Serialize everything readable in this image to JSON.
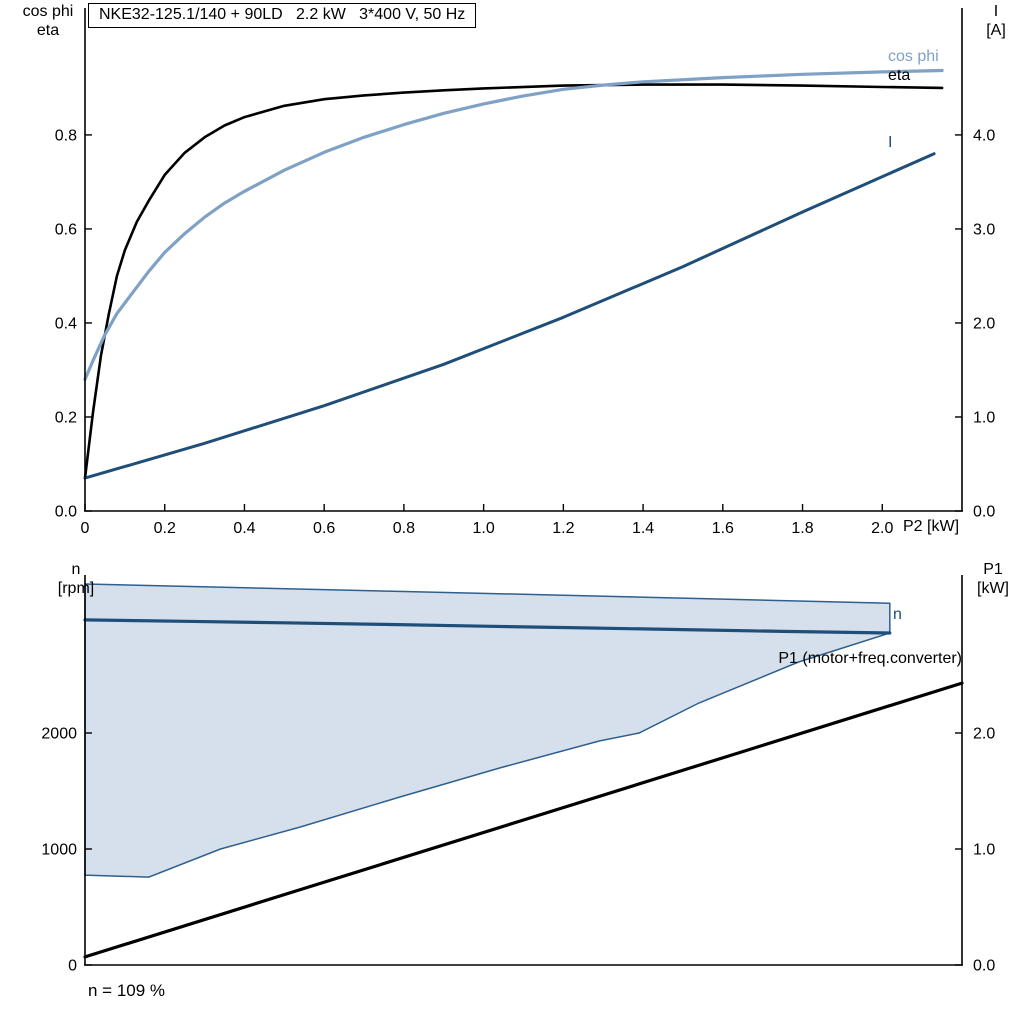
{
  "labels": {
    "top_left_line1": "cos phi",
    "top_left_line2": "eta",
    "top_right_line1": "I",
    "top_right_line2": "[A]",
    "x_axis_label": "P2 [kW]",
    "curve_cos_phi": "cos phi",
    "curve_eta": "eta",
    "curve_current": "I",
    "bottom_left_line1": "n",
    "bottom_left_line2": "[rpm]",
    "bottom_right_line1": "P1",
    "bottom_right_line2": "[kW]",
    "curve_n": "n",
    "curve_p1": "P1 (motor+freq.converter)"
  },
  "colors": {
    "eta": "#000000",
    "cos_phi": "#7fa1c6",
    "current": "#1f4e79",
    "speed": "#1f4e79",
    "p1": "#000000",
    "band_fill": "#d6e0ec",
    "band_stroke": "#2e5f8f"
  },
  "chart_data": [
    {
      "id": "motor-curves",
      "type": "line",
      "title": "NKE32-125.1/140 + 90LD   2.2 kW   3*400 V, 50 Hz",
      "x_axis": {
        "label": "P2 [kW]",
        "range": [
          0,
          2.2
        ],
        "tick_values": [
          0,
          0.2,
          0.4,
          0.6,
          0.8,
          1.0,
          1.2,
          1.4,
          1.6,
          1.8,
          2.0
        ],
        "tick_labels": [
          "0",
          "0.2",
          "0.4",
          "0.6",
          "0.8",
          "1.0",
          "1.2",
          "1.4",
          "1.6",
          "1.8",
          "2.0"
        ]
      },
      "y_left": {
        "label": "cos phi / eta",
        "range": [
          0,
          1.07
        ],
        "tick_values": [
          0,
          0.2,
          0.4,
          0.6,
          0.8
        ],
        "tick_labels": [
          "0.0",
          "0.2",
          "0.4",
          "0.6",
          "0.8"
        ]
      },
      "y_right": {
        "label": "I [A]",
        "range": [
          0,
          5.35
        ],
        "tick_values": [
          0,
          1,
          2,
          3,
          4
        ],
        "tick_labels": [
          "0.0",
          "1.0",
          "2.0",
          "3.0",
          "4.0"
        ]
      },
      "series": [
        {
          "id": "eta",
          "name": "eta",
          "axis": "left",
          "color": "#000000",
          "width": 2.6,
          "x": [
            0,
            0.02,
            0.04,
            0.06,
            0.08,
            0.1,
            0.13,
            0.16,
            0.2,
            0.25,
            0.3,
            0.35,
            0.4,
            0.5,
            0.6,
            0.7,
            0.8,
            0.9,
            1.0,
            1.2,
            1.4,
            1.6,
            1.8,
            2.0,
            2.15
          ],
          "y": [
            0.07,
            0.21,
            0.33,
            0.42,
            0.5,
            0.555,
            0.615,
            0.66,
            0.715,
            0.762,
            0.795,
            0.82,
            0.838,
            0.862,
            0.876,
            0.884,
            0.89,
            0.895,
            0.899,
            0.905,
            0.907,
            0.907,
            0.905,
            0.902,
            0.9
          ]
        },
        {
          "id": "cos-phi",
          "name": "cos phi",
          "axis": "left",
          "color": "#7fa1c6",
          "width": 3.2,
          "x": [
            0,
            0.02,
            0.05,
            0.08,
            0.12,
            0.16,
            0.2,
            0.25,
            0.3,
            0.35,
            0.4,
            0.5,
            0.6,
            0.7,
            0.8,
            0.9,
            1.0,
            1.1,
            1.2,
            1.3,
            1.4,
            1.6,
            1.8,
            2.0,
            2.15
          ],
          "y": [
            0.28,
            0.32,
            0.375,
            0.42,
            0.465,
            0.51,
            0.55,
            0.59,
            0.625,
            0.655,
            0.68,
            0.725,
            0.763,
            0.795,
            0.822,
            0.846,
            0.866,
            0.883,
            0.897,
            0.906,
            0.913,
            0.922,
            0.929,
            0.934,
            0.937
          ]
        },
        {
          "id": "current",
          "name": "I",
          "axis": "right",
          "color": "#1f4e79",
          "width": 3,
          "x": [
            0,
            0.3,
            0.6,
            0.9,
            1.2,
            1.5,
            1.8,
            2.13
          ],
          "y": [
            0.35,
            0.72,
            1.12,
            1.56,
            2.06,
            2.6,
            3.18,
            3.8
          ]
        }
      ]
    },
    {
      "id": "speed-power",
      "type": "line",
      "annotation": "n = 109 %",
      "x_axis": {
        "label": "",
        "range": [
          0,
          2.2
        ],
        "tick_values": [],
        "tick_labels": []
      },
      "y_left": {
        "label": "n [rpm]",
        "range": [
          0,
          3362
        ],
        "tick_values": [
          0,
          1000,
          2000
        ],
        "tick_labels": [
          "0",
          "1000",
          "2000"
        ]
      },
      "y_right": {
        "label": "P1 [kW]",
        "range": [
          0,
          3.362
        ],
        "tick_values": [
          0,
          1,
          2
        ],
        "tick_labels": [
          "0.0",
          "1.0",
          "2.0"
        ]
      },
      "band": {
        "name": "speed-control-range",
        "fill": "#d6e0ec",
        "stroke": "#2e5f8f",
        "stroke_width": 1.5,
        "upper_x": [
          0,
          0.4,
          0.8,
          1.2,
          1.6,
          2.019
        ],
        "upper_y": [
          3284,
          3252,
          3220,
          3188,
          3154,
          3118
        ],
        "lower_x": [
          0,
          0.16,
          0.34,
          0.54,
          0.79,
          1.04,
          1.29,
          1.39,
          1.54,
          1.79,
          2.019
        ],
        "lower_y": [
          775,
          758,
          1000,
          1190,
          1448,
          1698,
          1931,
          2000,
          2259,
          2612,
          2862
        ]
      },
      "series": [
        {
          "id": "n",
          "name": "n",
          "axis": "left",
          "color": "#1f4e79",
          "width": 3.2,
          "x": [
            0,
            0.25,
            0.5,
            0.75,
            1.0,
            1.25,
            1.5,
            1.75,
            2.019
          ],
          "y": [
            2975,
            2963,
            2950,
            2936,
            2921,
            2906,
            2891,
            2876,
            2862
          ]
        },
        {
          "id": "p1",
          "name": "P1 (motor+freq.converter)",
          "axis": "right",
          "color": "#000000",
          "width": 3.2,
          "x": [
            0,
            0.55,
            1.1,
            1.65,
            2.2
          ],
          "y": [
            0.07,
            0.66,
            1.25,
            1.84,
            2.43
          ]
        }
      ]
    }
  ]
}
